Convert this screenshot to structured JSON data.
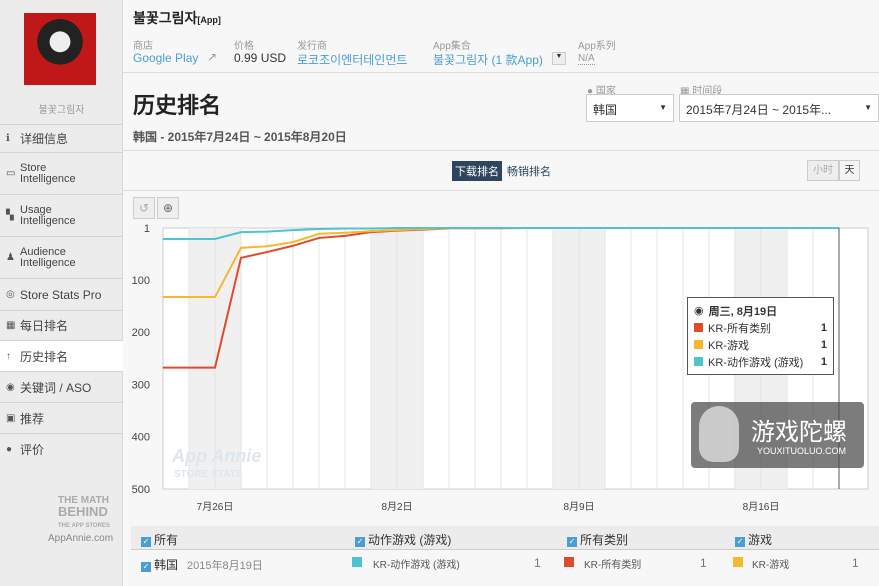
{
  "sidebar": {
    "app_name": "불꽃그림자",
    "items": [
      {
        "label": "详细信息",
        "icon": "info-icon"
      },
      {
        "label": "Store\nIntelligence",
        "icon": "store-icon"
      },
      {
        "label": "Usage\nIntelligence",
        "icon": "usage-icon"
      },
      {
        "label": "Audience\nIntelligence",
        "icon": "person-icon"
      },
      {
        "label": "Store Stats Pro",
        "icon": "globe-icon"
      },
      {
        "label": "每日排名",
        "icon": "calendar-icon"
      },
      {
        "label": "历史排名",
        "icon": "arrow-up-icon"
      },
      {
        "label": "关键词 / ASO",
        "icon": "keyword-icon"
      },
      {
        "label": "推荐",
        "icon": "featured-icon"
      },
      {
        "label": "评价",
        "icon": "comment-icon"
      }
    ],
    "logo": {
      "line1": "THE MATH",
      "line2": "BEHIND",
      "line3": "THE APP STORES",
      "site": "AppAnnie.com"
    }
  },
  "header": {
    "title": "불꽃그림자",
    "tag": "[App]",
    "store_label": "商店",
    "store": "Google Play",
    "price_label": "价格",
    "price": "0.99 USD",
    "publisher_label": "发行商",
    "publisher": "로코조이엔터테인먼트",
    "collection_label": "App集合",
    "collection": "불꽃그림자 (1 款App)",
    "series_label": "App系列",
    "series": "N/A"
  },
  "page": {
    "title": "历史排名",
    "subtitle": "韩国 - 2015年7月24日 ~ 2015年8月20日",
    "country_label": "国家",
    "country": "韩国",
    "period_label": "时间段",
    "period": "2015年7月24日 ~ 2015年..."
  },
  "tabs": {
    "downloads": "下载排名",
    "grossing": "畅销排名",
    "hour": "小时",
    "day": "天"
  },
  "chart_data": {
    "type": "line",
    "x": [
      "7/24",
      "7/25",
      "7/26",
      "7/27",
      "7/28",
      "7/29",
      "7/30",
      "7/31",
      "8/1",
      "8/2",
      "8/3",
      "8/4",
      "8/5",
      "8/6",
      "8/7",
      "8/8",
      "8/9",
      "8/10",
      "8/11",
      "8/12",
      "8/13",
      "8/14",
      "8/15",
      "8/16",
      "8/17",
      "8/18",
      "8/19"
    ],
    "x_ticks": [
      "7月26日",
      "8月2日",
      "8月9日",
      "8月16日"
    ],
    "y_ticks": [
      "1",
      "100",
      "200",
      "300",
      "400",
      "500"
    ],
    "ylim": [
      1,
      500
    ],
    "y_inverted": true,
    "series": [
      {
        "name": "KR-所有类别",
        "color": "#e04a2a",
        "values": [
          268,
          268,
          268,
          58,
          47,
          35,
          20,
          16,
          9,
          6,
          4,
          2,
          2,
          1,
          1,
          1,
          1,
          1,
          1,
          1,
          1,
          1,
          1,
          1,
          1,
          1,
          1
        ]
      },
      {
        "name": "KR-游戏",
        "color": "#f5b82e",
        "values": [
          133,
          133,
          133,
          39,
          36,
          28,
          12,
          10,
          7,
          5,
          3,
          2,
          2,
          2,
          1,
          1,
          1,
          1,
          1,
          1,
          1,
          1,
          1,
          1,
          1,
          1,
          1
        ]
      },
      {
        "name": "KR-动作游戏 (游戏)",
        "color": "#4fc3cf",
        "values": [
          22,
          22,
          22,
          9,
          8,
          5,
          3,
          2,
          2,
          1,
          1,
          1,
          1,
          1,
          1,
          1,
          1,
          1,
          1,
          1,
          1,
          1,
          1,
          1,
          1,
          1,
          1
        ]
      }
    ]
  },
  "tooltip": {
    "date": "周三, 8月19日",
    "rows": [
      {
        "name": "KR-所有类别",
        "value": "1"
      },
      {
        "name": "KR-游戏",
        "value": "1"
      },
      {
        "name": "KR-动作游戏 (游戏)",
        "value": "1"
      }
    ]
  },
  "legend": {
    "headers": [
      "所有",
      "动作游戏 (游戏)",
      "所有类别",
      "游戏"
    ],
    "country": "韩国",
    "date": "2015年8月19日",
    "items": [
      {
        "name": "KR-动作游戏 (游戏)",
        "value": "1"
      },
      {
        "name": "KR-所有类别",
        "value": "1"
      },
      {
        "name": "KR-游戏",
        "value": "1"
      }
    ]
  },
  "watermark": {
    "chart": "App Annie",
    "chart2": "STORE STATS",
    "brand": "游戏陀螺",
    "url": "YOUXITUOLUO.COM"
  }
}
